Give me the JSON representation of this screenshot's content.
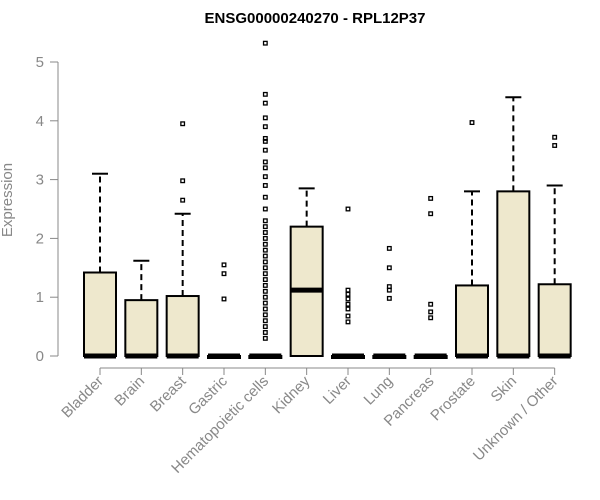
{
  "chart_data": {
    "type": "boxplot",
    "title": "ENSG00000240270 - RPL12P37",
    "xlabel": "",
    "ylabel": "Expression",
    "ylim": [
      0,
      5.3
    ],
    "yticks": [
      0,
      1,
      2,
      3,
      4,
      5
    ],
    "box_fill": "#EEE8CD",
    "box_stroke": "#000000",
    "axis_color": "#888888",
    "categories": [
      "Bladder",
      "Brain",
      "Breast",
      "Gastric",
      "Hematopoietic cells",
      "Kidney",
      "Liver",
      "Lung",
      "Pancreas",
      "Prostate",
      "Skin",
      "Unknown / Other"
    ],
    "boxes": [
      {
        "q1": 0,
        "median": 0,
        "q3": 1.42,
        "whisker_low": 0,
        "whisker_high": 3.1,
        "outliers": []
      },
      {
        "q1": 0,
        "median": 0,
        "q3": 0.95,
        "whisker_low": 0,
        "whisker_high": 1.62,
        "outliers": []
      },
      {
        "q1": 0,
        "median": 0,
        "q3": 1.02,
        "whisker_low": 0,
        "whisker_high": 2.42,
        "outliers": [
          2.65,
          2.98,
          3.95
        ]
      },
      {
        "q1": 0,
        "median": 0,
        "q3": 0,
        "whisker_low": 0,
        "whisker_high": 0,
        "outliers": [
          0.97,
          1.4,
          1.55
        ]
      },
      {
        "q1": 0,
        "median": 0,
        "q3": 0,
        "whisker_low": 0,
        "whisker_high": 0,
        "outliers": [
          0.3,
          0.4,
          0.5,
          0.6,
          0.7,
          0.8,
          0.9,
          1.0,
          1.1,
          1.2,
          1.3,
          1.4,
          1.5,
          1.6,
          1.7,
          1.8,
          1.9,
          2.0,
          2.1,
          2.2,
          2.3,
          2.5,
          2.7,
          2.9,
          3.05,
          3.2,
          3.3,
          3.5,
          3.65,
          3.7,
          3.9,
          4.05,
          4.3,
          4.45,
          5.32
        ]
      },
      {
        "q1": 0,
        "median": 1.12,
        "q3": 2.2,
        "whisker_low": 0,
        "whisker_high": 2.85,
        "outliers": []
      },
      {
        "q1": 0,
        "median": 0,
        "q3": 0,
        "whisker_low": 0,
        "whisker_high": 0,
        "outliers": [
          0.58,
          0.68,
          0.8,
          0.88,
          0.97,
          1.05,
          1.12,
          2.5
        ]
      },
      {
        "q1": 0,
        "median": 0,
        "q3": 0,
        "whisker_low": 0,
        "whisker_high": 0,
        "outliers": [
          0.98,
          1.12,
          1.18,
          1.5,
          1.83
        ]
      },
      {
        "q1": 0,
        "median": 0,
        "q3": 0,
        "whisker_low": 0,
        "whisker_high": 0,
        "outliers": [
          0.65,
          0.75,
          0.88,
          2.42,
          2.68
        ]
      },
      {
        "q1": 0,
        "median": 0,
        "q3": 1.2,
        "whisker_low": 0,
        "whisker_high": 2.8,
        "outliers": [
          3.97
        ]
      },
      {
        "q1": 0,
        "median": 0,
        "q3": 2.8,
        "whisker_low": 0,
        "whisker_high": 4.4,
        "outliers": []
      },
      {
        "q1": 0,
        "median": 0,
        "q3": 1.22,
        "whisker_low": 0,
        "whisker_high": 2.9,
        "outliers": [
          3.58,
          3.72
        ]
      }
    ]
  }
}
